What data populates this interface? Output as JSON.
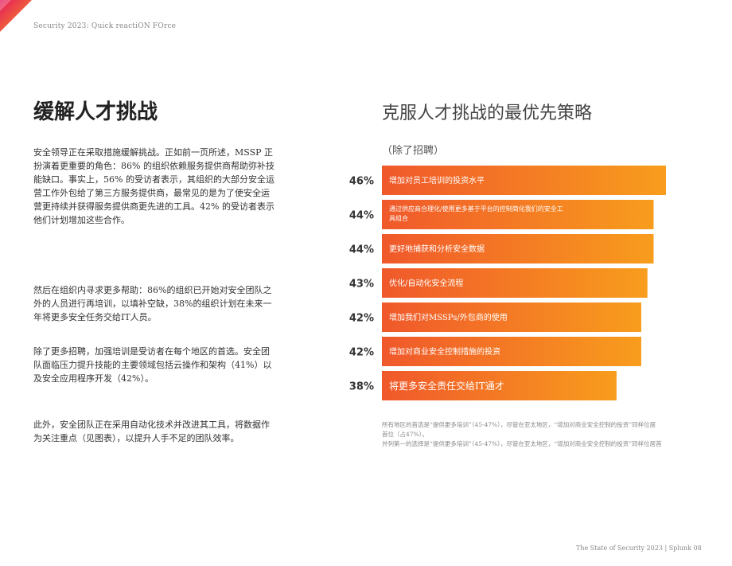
{
  "running_head": "Security 2023: Quick reactiON FOrce",
  "page_title": "缓解人才挑战",
  "paragraphs": [
    "安全领导正在采取措施缓解挑战。正如前一页所述，MSSP 正扮演着更重要的角色：86% 的组织依赖服务提供商帮助弥补技能缺口。事实上，56% 的受访者表示，其组织的大部分安全运营工作外包给了第三方服务提供商，最常见的是为了使安全运营更持续并获得服务提供商更先进的工具。42% 的受访者表示他们计划增加这些合作。",
    "然后在组织内寻求更多帮助：86%的组织已开始对安全团队之外的人员进行再培训，以填补空缺，38%的组织计划在未来一年将更多安全任务交给IT人员。",
    "除了更多招聘，加强培训是受访者在每个地区的首选。安全团队面临压力提升技能的主要领域包括云操作和架构（41%）以及安全应用程序开发（42%）。",
    "此外，安全团队正在采用自动化技术并改进其工具，将数据作为关注重点（见图表），以提升人手不足的团队效率。"
  ],
  "chart_data": {
    "type": "bar",
    "orientation": "horizontal",
    "title": "克服人才挑战的最优先策略",
    "subtitle": "（除了招聘）",
    "categories": [
      "增加对员工培训的投资水平",
      "通过供应商合理化/使用更多基于平台的控制简化我们的安全工具组合",
      "更好地捕获和分析安全数据",
      "优化/自动化安全流程",
      "增加我们对MSSPs/外包商的使用",
      "增加对商业安全控制措施的投资",
      "将更多安全责任交给IT通才"
    ],
    "category_lines": [
      [
        "增加对员工培训的投资水平"
      ],
      [
        "通过供应商合理化/使用更多基于平台的控制简化我们的安全工",
        "具组合"
      ],
      [
        "更好地捕获和分析安全数据"
      ],
      [
        "优化/自动化安全流程"
      ],
      [
        "增加我们对MSSPs/外包商的使用"
      ],
      [
        "增加对商业安全控制措施的投资"
      ],
      [
        "将更多安全责任交给IT通才"
      ]
    ],
    "values": [
      46,
      44,
      44,
      43,
      42,
      42,
      38
    ],
    "value_labels": [
      "46%",
      "44%",
      "44%",
      "43%",
      "42%",
      "42%",
      "38%"
    ],
    "xlim": [
      0,
      46
    ],
    "colors": {
      "bar_start": "#f0582b",
      "bar_end": "#f89d1d"
    }
  },
  "notes": {
    "line1": "所有地区的首选是“提供更多培训”（45-47%），尽管在亚太地区，“增加对商业安全控制的投资”同样位居首位（占47%）。",
    "line2": "并列第一的选择是“提供更多培训”（45-47%），尽管在亚太地区，“增加对商业安全控制的投资”同样位居首"
  },
  "footer": "The State of Security 2023 | Splunk 08",
  "colors": {
    "corner_a": "#e5195e",
    "corner_b": "#f89d1d"
  }
}
